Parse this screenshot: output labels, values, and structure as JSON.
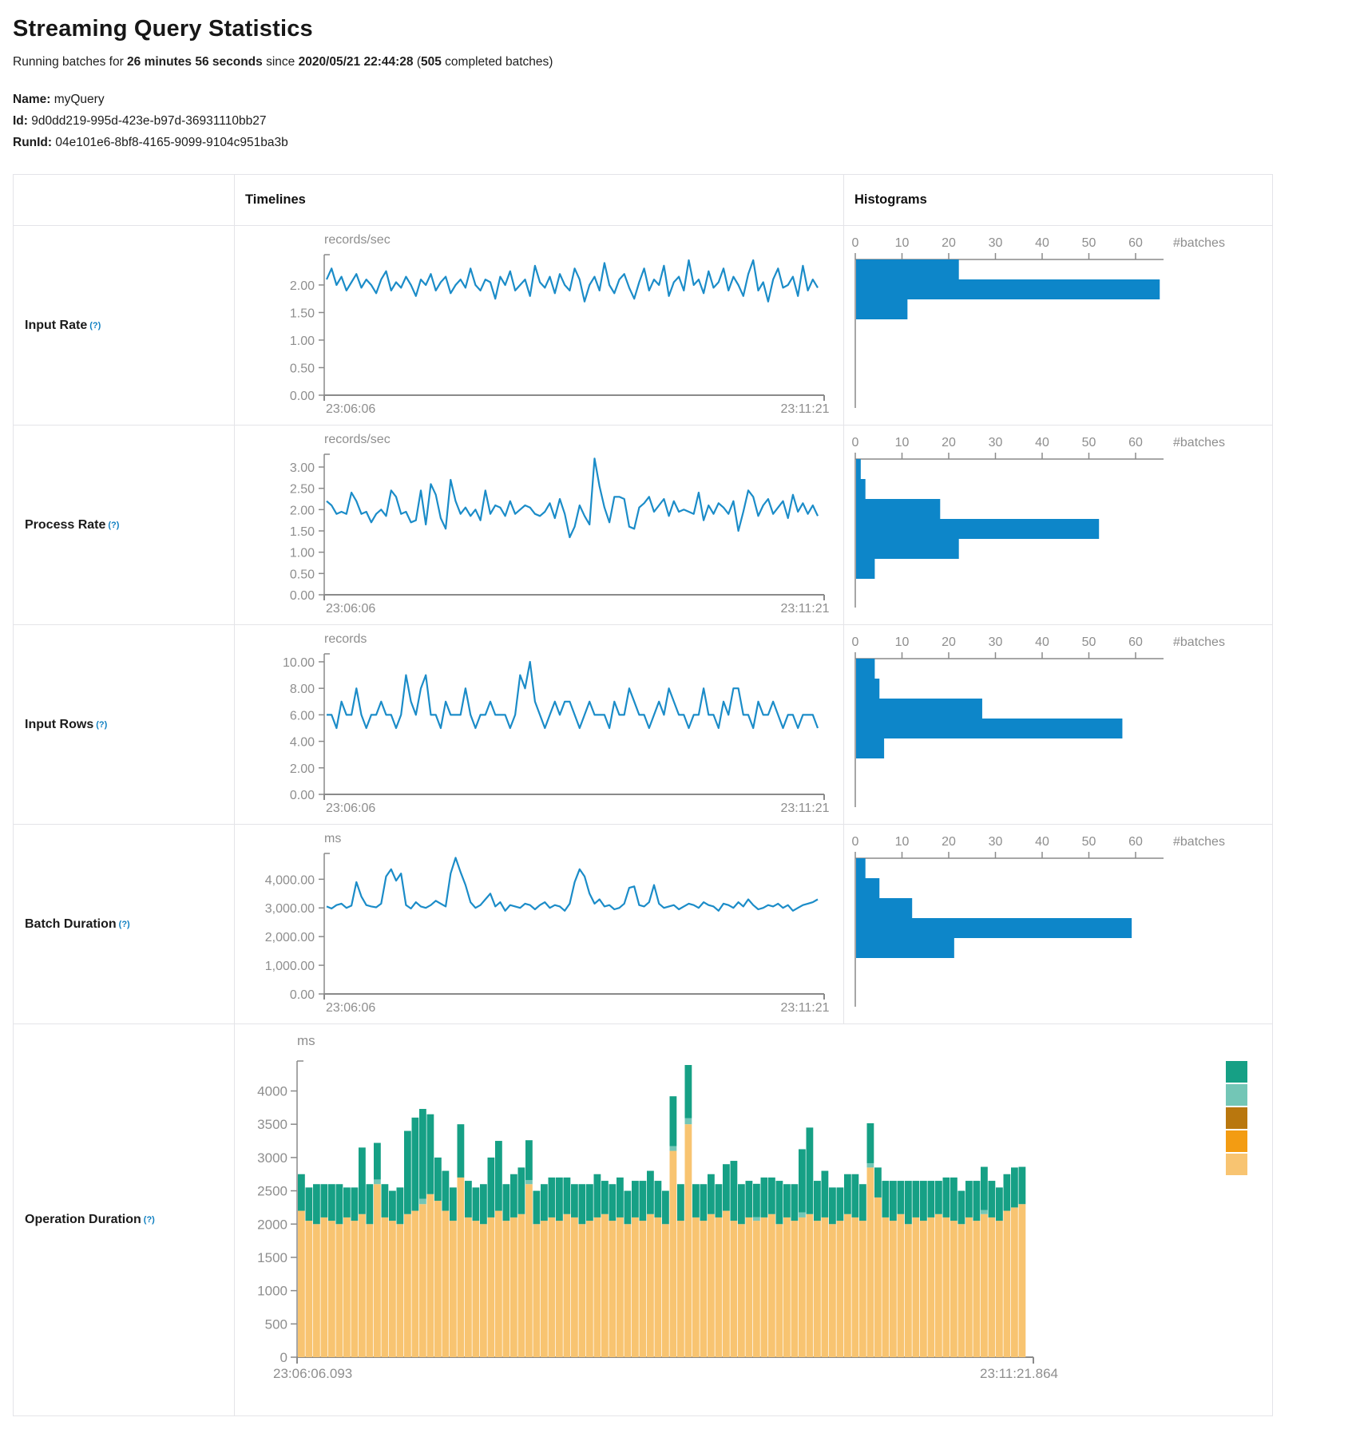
{
  "title": "Streaming Query Statistics",
  "subtitle": {
    "prefix": "Running batches for ",
    "duration": "26 minutes 56 seconds",
    "mid": " since ",
    "start_time": "2020/05/21 22:44:28",
    "paren_open": " (",
    "batch_count": "505",
    "suffix": " completed batches)"
  },
  "meta": {
    "name_label": "Name:",
    "name": "myQuery",
    "id_label": "Id:",
    "id": "9d0dd219-995d-423e-b97d-36931110bb27",
    "runid_label": "RunId:",
    "runid": "04e101e6-8bf8-4165-9099-9104c951ba3b"
  },
  "table": {
    "headers": {
      "timelines": "Timelines",
      "histograms": "Histograms"
    },
    "rows": [
      {
        "label": "Input Rate",
        "help": "(?)"
      },
      {
        "label": "Process Rate",
        "help": "(?)"
      },
      {
        "label": "Input Rows",
        "help": "(?)"
      },
      {
        "label": "Batch Duration",
        "help": "(?)"
      },
      {
        "label": "Operation Duration",
        "help": "(?)"
      }
    ]
  },
  "colors": {
    "line": "#1b8cc8",
    "bar": "#0d86c9",
    "axis": "#8a8a8a",
    "tick_text": "#8e8e8e",
    "legend": [
      "#16A085",
      "#73C6B6",
      "#B9770E",
      "#F39C12",
      "#F8C471"
    ]
  },
  "chart_data": [
    {
      "name": "input-rate-timeline",
      "type": "line",
      "title": "Input Rate over time",
      "unit": "records/sec",
      "ylim": 2.55,
      "ytick_values": [
        2.0,
        1.5,
        1.0,
        0.5,
        0.0
      ],
      "ytick_labels": [
        "2.00",
        "1.50",
        "1.00",
        "0.50",
        "0.00"
      ],
      "x_start_label": "23:06:06",
      "x_end_label": "23:11:21",
      "values": [
        2.1,
        2.3,
        2.0,
        2.15,
        1.9,
        2.05,
        2.2,
        1.95,
        2.1,
        2.0,
        1.85,
        2.1,
        2.25,
        1.9,
        2.05,
        1.95,
        2.15,
        2.0,
        1.8,
        2.1,
        2.0,
        2.2,
        1.9,
        2.05,
        2.15,
        1.85,
        2.0,
        2.1,
        1.95,
        2.3,
        2.0,
        1.9,
        2.1,
        2.05,
        1.75,
        2.15,
        2.0,
        2.25,
        1.9,
        2.0,
        2.1,
        1.8,
        2.35,
        2.05,
        1.95,
        2.15,
        1.85,
        2.2,
        2.0,
        1.9,
        2.3,
        2.1,
        1.7,
        2.0,
        2.15,
        1.9,
        2.4,
        2.0,
        1.85,
        2.1,
        2.2,
        1.95,
        1.75,
        2.05,
        2.3,
        1.9,
        2.1,
        2.0,
        2.35,
        1.8,
        2.05,
        2.15,
        1.9,
        2.45,
        2.0,
        2.1,
        1.85,
        2.25,
        1.95,
        2.05,
        2.3,
        1.9,
        2.15,
        2.0,
        1.8,
        2.2,
        2.45,
        1.9,
        2.05,
        1.7,
        2.1,
        2.3,
        1.95,
        2.0,
        2.15,
        1.8,
        2.35,
        1.9,
        2.1,
        1.95
      ]
    },
    {
      "name": "input-rate-histogram",
      "type": "hbar",
      "title": "Input Rate distribution",
      "xticks": [
        0,
        10,
        20,
        30,
        40,
        50,
        60
      ],
      "end_label": "#batches",
      "values": [
        22,
        65,
        11
      ]
    },
    {
      "name": "process-rate-timeline",
      "type": "line",
      "title": "Process Rate over time",
      "unit": "records/sec",
      "ylim": 3.3,
      "ytick_values": [
        3.0,
        2.5,
        2.0,
        1.5,
        1.0,
        0.5,
        0.0
      ],
      "ytick_labels": [
        "3.00",
        "2.50",
        "2.00",
        "1.50",
        "1.00",
        "0.50",
        "0.00"
      ],
      "x_start_label": "23:06:06",
      "x_end_label": "23:11:21",
      "values": [
        2.2,
        2.1,
        1.9,
        1.95,
        1.9,
        2.4,
        2.2,
        1.9,
        1.95,
        1.7,
        1.9,
        2.0,
        1.85,
        2.45,
        2.3,
        1.9,
        1.95,
        1.7,
        1.75,
        2.45,
        1.65,
        2.6,
        2.35,
        1.8,
        1.55,
        2.7,
        2.2,
        1.9,
        2.05,
        1.85,
        2.0,
        1.75,
        2.45,
        1.9,
        2.1,
        2.05,
        1.85,
        2.2,
        1.9,
        2.0,
        2.1,
        2.05,
        1.9,
        1.85,
        1.95,
        2.15,
        1.8,
        2.25,
        1.9,
        1.35,
        1.6,
        2.1,
        1.85,
        1.65,
        3.2,
        2.55,
        2.05,
        1.7,
        2.3,
        2.3,
        2.25,
        1.6,
        1.55,
        2.05,
        2.15,
        2.3,
        1.95,
        2.1,
        2.25,
        1.85,
        2.2,
        1.95,
        2.0,
        1.95,
        1.9,
        2.4,
        1.75,
        2.1,
        1.9,
        2.15,
        2.05,
        1.9,
        2.2,
        1.5,
        1.95,
        2.45,
        2.3,
        1.85,
        2.1,
        2.25,
        1.9,
        2.05,
        2.2,
        1.8,
        2.35,
        1.95,
        2.15,
        1.9,
        2.1,
        1.85
      ]
    },
    {
      "name": "process-rate-histogram",
      "type": "hbar",
      "title": "Process Rate distribution",
      "xticks": [
        0,
        10,
        20,
        30,
        40,
        50,
        60
      ],
      "end_label": "#batches",
      "values": [
        1,
        2,
        18,
        52,
        22,
        4
      ]
    },
    {
      "name": "input-rows-timeline",
      "type": "line",
      "title": "Input Rows over time",
      "unit": "records",
      "ylim": 10.6,
      "ytick_values": [
        10,
        8,
        6,
        4,
        2,
        0
      ],
      "ytick_labels": [
        "10.00",
        "8.00",
        "6.00",
        "4.00",
        "2.00",
        "0.00"
      ],
      "x_start_label": "23:06:06",
      "x_end_label": "23:11:21",
      "values": [
        6,
        6,
        5,
        7,
        6,
        6,
        8,
        6,
        5,
        6,
        6,
        7,
        6,
        6,
        5,
        6,
        9,
        7,
        6,
        8,
        9,
        6,
        6,
        5,
        7,
        6,
        6,
        6,
        8,
        6,
        5,
        6,
        6,
        7,
        6,
        6,
        6,
        5,
        6,
        9,
        8,
        10,
        7,
        6,
        5,
        6,
        7,
        6,
        7,
        7,
        6,
        5,
        6,
        7,
        6,
        6,
        6,
        5,
        7,
        6,
        6,
        8,
        7,
        6,
        6,
        5,
        6,
        7,
        6,
        8,
        7,
        6,
        6,
        5,
        6,
        6,
        8,
        6,
        6,
        5,
        7,
        6,
        8,
        8,
        6,
        6,
        5,
        7,
        6,
        6,
        7,
        6,
        5,
        6,
        6,
        5,
        6,
        6,
        6,
        5
      ]
    },
    {
      "name": "input-rows-histogram",
      "type": "hbar",
      "title": "Input Rows distribution",
      "xticks": [
        0,
        10,
        20,
        30,
        40,
        50,
        60
      ],
      "end_label": "#batches",
      "values": [
        4,
        5,
        27,
        57,
        6
      ]
    },
    {
      "name": "batch-duration-timeline",
      "type": "line",
      "title": "Batch Duration over time",
      "unit": "ms",
      "ylim": 4900,
      "ytick_values": [
        4000,
        3000,
        2000,
        1000,
        0
      ],
      "ytick_labels": [
        "4,000.00",
        "3,000.00",
        "2,000.00",
        "1,000.00",
        "0.00"
      ],
      "x_start_label": "23:06:06",
      "x_end_label": "23:11:21",
      "values": [
        3050,
        2980,
        3100,
        3150,
        3000,
        3080,
        3900,
        3400,
        3100,
        3050,
        3020,
        3150,
        4100,
        4350,
        3950,
        4200,
        3100,
        2980,
        3200,
        3050,
        3000,
        3100,
        3250,
        3150,
        3050,
        4200,
        4750,
        4250,
        3800,
        3200,
        3000,
        3100,
        3300,
        3500,
        3050,
        3200,
        2900,
        3100,
        3050,
        3000,
        3150,
        3100,
        2950,
        3100,
        3200,
        3000,
        3100,
        3050,
        2900,
        3150,
        3900,
        4350,
        4100,
        3500,
        3150,
        3300,
        3050,
        3100,
        2950,
        3000,
        3150,
        3700,
        3750,
        3100,
        3050,
        3200,
        3800,
        3150,
        3000,
        3050,
        3100,
        2950,
        3050,
        3150,
        3100,
        3000,
        3200,
        3100,
        3050,
        2900,
        3150,
        3100,
        3000,
        3200,
        3050,
        3300,
        3100,
        2950,
        3000,
        3100,
        3050,
        3150,
        3000,
        3100,
        2900,
        3000,
        3100,
        3150,
        3200,
        3300
      ]
    },
    {
      "name": "batch-duration-histogram",
      "type": "hbar",
      "title": "Batch Duration distribution",
      "xticks": [
        0,
        10,
        20,
        30,
        40,
        50,
        60
      ],
      "end_label": "#batches",
      "values": [
        2,
        5,
        12,
        59,
        21
      ]
    },
    {
      "name": "operation-duration-stacked",
      "type": "stacked",
      "title": "Operation Duration over time",
      "unit": "ms",
      "ylim": 4450,
      "ytick_values": [
        4000,
        3500,
        3000,
        2500,
        2000,
        1500,
        1000,
        500,
        0
      ],
      "ytick_labels": [
        "4000",
        "3500",
        "3000",
        "2500",
        "2000",
        "1500",
        "1000",
        "500",
        "0"
      ],
      "x_start_label": "23:06:06.093",
      "x_end_label": "23:11:21.864",
      "legend_colors": [
        "#16A085",
        "#73C6B6",
        "#B9770E",
        "#F39C12",
        "#F8C471"
      ],
      "series": [
        {
          "name": "base",
          "color": "#F8C471",
          "values": [
            2200,
            2050,
            2000,
            2100,
            2050,
            2000,
            2100,
            2050,
            2150,
            2000,
            2600,
            2100,
            2050,
            2000,
            2150,
            2200,
            2300,
            2450,
            2350,
            2200,
            2050,
            2700,
            2100,
            2050,
            2000,
            2100,
            2200,
            2050,
            2100,
            2150,
            2600,
            2000,
            2050,
            2100,
            2050,
            2150,
            2100,
            2000,
            2050,
            2100,
            2150,
            2050,
            2100,
            2000,
            2100,
            2050,
            2150,
            2100,
            2000,
            3100,
            2050,
            3500,
            2100,
            2050,
            2150,
            2100,
            2200,
            2050,
            2000,
            2100,
            2050,
            2100,
            2150,
            2000,
            2100,
            2050,
            2100,
            2150,
            2050,
            2100,
            2000,
            2050,
            2150,
            2100,
            2050,
            2850,
            2400,
            2100,
            2050,
            2150,
            2000,
            2100,
            2050,
            2100,
            2150,
            2100,
            2050,
            2000,
            2100,
            2050,
            2150,
            2100,
            2050,
            2200,
            2250,
            2300
          ]
        },
        {
          "name": "sliver",
          "color": "#73C6B6",
          "values": [
            0,
            0,
            0,
            0,
            0,
            0,
            0,
            0,
            0,
            0,
            70,
            0,
            0,
            0,
            0,
            0,
            80,
            0,
            0,
            0,
            0,
            0,
            0,
            0,
            0,
            0,
            0,
            0,
            0,
            0,
            60,
            0,
            0,
            0,
            0,
            0,
            0,
            0,
            0,
            0,
            0,
            0,
            0,
            0,
            0,
            0,
            0,
            0,
            0,
            70,
            0,
            90,
            0,
            0,
            0,
            0,
            0,
            0,
            0,
            0,
            55,
            0,
            0,
            0,
            0,
            0,
            75,
            0,
            0,
            0,
            0,
            0,
            0,
            0,
            0,
            65,
            0,
            0,
            0,
            0,
            0,
            0,
            0,
            0,
            0,
            0,
            0,
            0,
            0,
            0,
            60,
            0,
            0,
            0,
            0,
            0
          ]
        },
        {
          "name": "top",
          "color": "#16A085",
          "values": [
            550,
            500,
            600,
            500,
            550,
            600,
            450,
            500,
            1000,
            600,
            550,
            500,
            450,
            550,
            1250,
            1400,
            1350,
            1200,
            650,
            600,
            500,
            800,
            550,
            500,
            600,
            900,
            1050,
            550,
            650,
            700,
            600,
            500,
            550,
            600,
            650,
            550,
            500,
            600,
            550,
            650,
            500,
            550,
            600,
            500,
            550,
            600,
            650,
            550,
            500,
            750,
            550,
            800,
            500,
            550,
            600,
            500,
            700,
            900,
            600,
            550,
            500,
            600,
            550,
            650,
            500,
            550,
            950,
            1300,
            600,
            700,
            550,
            500,
            600,
            650,
            550,
            600,
            450,
            550,
            600,
            500,
            650,
            550,
            600,
            550,
            500,
            600,
            650,
            500,
            550,
            600,
            650,
            550,
            500,
            550,
            600,
            560
          ]
        }
      ]
    }
  ]
}
